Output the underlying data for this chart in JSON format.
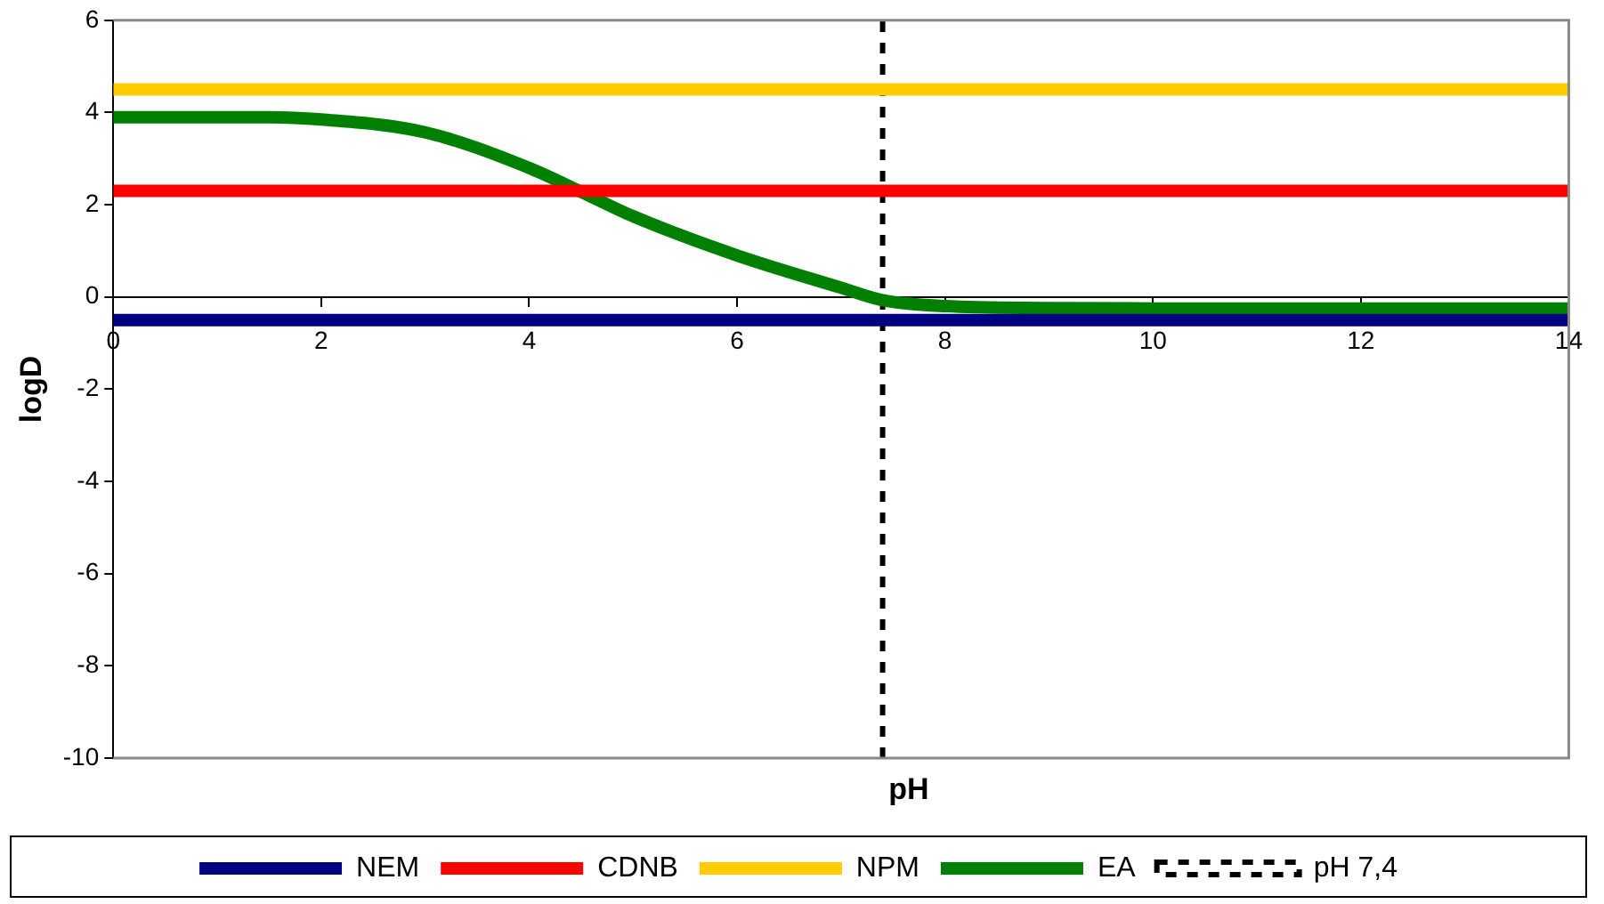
{
  "chart_data": {
    "type": "line",
    "xlabel": "pH",
    "ylabel": "logD",
    "xlim": [
      0,
      14
    ],
    "xticks": [
      0,
      2,
      4,
      6,
      8,
      10,
      12,
      14
    ],
    "ylim": [
      -10,
      6
    ],
    "yticks": [
      -10,
      -8,
      -6,
      -4,
      -2,
      0,
      2,
      4,
      6
    ],
    "grid": false,
    "legend": "bottom",
    "marker": "none",
    "line_style": "solid",
    "series": [
      {
        "name": "NEM",
        "color": "#000080",
        "x": [
          0,
          14
        ],
        "values": [
          -0.5,
          -0.5
        ]
      },
      {
        "name": "CDNB",
        "color": "#ff0000",
        "x": [
          0,
          14
        ],
        "values": [
          2.3,
          2.3
        ]
      },
      {
        "name": "NPM",
        "color": "#ffcc00",
        "x": [
          0,
          14
        ],
        "values": [
          4.5,
          4.5
        ]
      },
      {
        "name": "EA",
        "color": "#008000",
        "x": [
          0,
          1,
          1.5,
          2,
          3,
          4,
          4.5,
          5,
          6,
          7,
          7.4,
          8,
          9,
          10,
          12,
          14
        ],
        "values": [
          3.9,
          3.9,
          3.9,
          3.85,
          3.57,
          2.8,
          2.28,
          1.75,
          0.9,
          0.2,
          -0.07,
          -0.2,
          -0.24,
          -0.25,
          -0.25,
          -0.25
        ]
      }
    ],
    "ref_lines": [
      {
        "axis": "x",
        "value": 7.4,
        "label": "pH 7,4",
        "color": "#000000",
        "line_style": "dashed"
      }
    ]
  }
}
